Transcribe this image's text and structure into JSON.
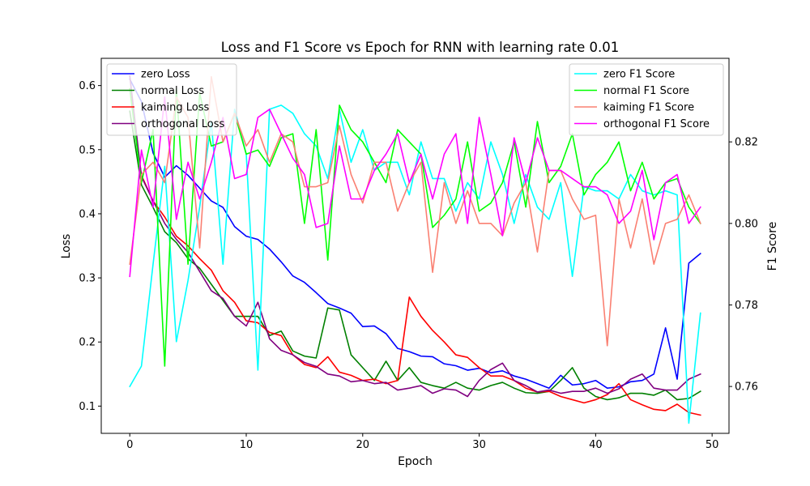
{
  "chart_data": {
    "type": "line",
    "title": "Loss and F1 Score vs Epoch for RNN with learning rate 0.01",
    "xlabel": "Epoch",
    "ylabel": "Loss",
    "ylabel_right": "F1 Score",
    "xlim": [
      -2.45,
      51.45
    ],
    "ylim": [
      0.0575,
      0.6425
    ],
    "ylim_right": [
      0.7485,
      0.8405
    ],
    "x_ticks": [
      "0",
      "10",
      "20",
      "30",
      "40",
      "50"
    ],
    "y_ticks": [
      "0.1",
      "0.2",
      "0.3",
      "0.4",
      "0.5",
      "0.6"
    ],
    "y_ticks_right": [
      "0.76",
      "0.78",
      "0.80",
      "0.82"
    ],
    "grid": false,
    "legend_left_position": "upper-left",
    "legend_right_position": "upper-right",
    "x": [
      0,
      1,
      2,
      3,
      4,
      5,
      6,
      7,
      8,
      9,
      10,
      11,
      12,
      13,
      14,
      15,
      16,
      17,
      18,
      19,
      20,
      21,
      22,
      23,
      24,
      25,
      26,
      27,
      28,
      29,
      30,
      31,
      32,
      33,
      34,
      35,
      36,
      37,
      38,
      39,
      40,
      41,
      42,
      43,
      44,
      45,
      46,
      47,
      48,
      49
    ],
    "loss_series": [
      {
        "name": "zero Loss",
        "color": "#0000ff",
        "values": [
          0.61,
          0.575,
          0.495,
          0.457,
          0.475,
          0.46,
          0.44,
          0.42,
          0.41,
          0.38,
          0.365,
          0.36,
          0.345,
          0.325,
          0.303,
          0.293,
          0.277,
          0.26,
          0.253,
          0.245,
          0.224,
          0.225,
          0.213,
          0.19,
          0.185,
          0.178,
          0.177,
          0.166,
          0.163,
          0.156,
          0.159,
          0.152,
          0.155,
          0.147,
          0.142,
          0.135,
          0.128,
          0.148,
          0.133,
          0.135,
          0.14,
          0.128,
          0.13,
          0.138,
          0.14,
          0.15,
          0.222,
          0.142,
          0.323,
          0.338
        ]
      },
      {
        "name": "normal Loss",
        "color": "#008000",
        "values": [
          0.56,
          0.445,
          0.41,
          0.372,
          0.355,
          0.33,
          0.315,
          0.29,
          0.265,
          0.24,
          0.24,
          0.24,
          0.21,
          0.217,
          0.186,
          0.178,
          0.175,
          0.253,
          0.25,
          0.18,
          0.16,
          0.14,
          0.17,
          0.14,
          0.16,
          0.137,
          0.132,
          0.128,
          0.137,
          0.128,
          0.125,
          0.132,
          0.137,
          0.128,
          0.121,
          0.12,
          0.123,
          0.14,
          0.16,
          0.128,
          0.115,
          0.11,
          0.113,
          0.12,
          0.12,
          0.117,
          0.125,
          0.11,
          0.112,
          0.123
        ]
      },
      {
        "name": "kaiming Loss",
        "color": "#ff0000",
        "values": [
          0.595,
          0.46,
          0.42,
          0.395,
          0.365,
          0.35,
          0.33,
          0.312,
          0.28,
          0.262,
          0.233,
          0.23,
          0.215,
          0.21,
          0.18,
          0.165,
          0.16,
          0.177,
          0.153,
          0.148,
          0.14,
          0.142,
          0.135,
          0.14,
          0.27,
          0.24,
          0.218,
          0.2,
          0.18,
          0.176,
          0.16,
          0.147,
          0.147,
          0.14,
          0.128,
          0.122,
          0.123,
          0.115,
          0.11,
          0.105,
          0.11,
          0.118,
          0.135,
          0.11,
          0.102,
          0.095,
          0.093,
          0.103,
          0.09,
          0.086
        ]
      },
      {
        "name": "orthogonal Loss",
        "color": "#800080",
        "values": [
          0.615,
          0.458,
          0.42,
          0.385,
          0.36,
          0.34,
          0.31,
          0.28,
          0.268,
          0.24,
          0.225,
          0.262,
          0.205,
          0.187,
          0.18,
          0.168,
          0.162,
          0.15,
          0.147,
          0.138,
          0.14,
          0.135,
          0.137,
          0.125,
          0.128,
          0.132,
          0.12,
          0.127,
          0.125,
          0.115,
          0.14,
          0.157,
          0.167,
          0.14,
          0.132,
          0.122,
          0.125,
          0.12,
          0.123,
          0.123,
          0.128,
          0.12,
          0.127,
          0.142,
          0.15,
          0.128,
          0.125,
          0.125,
          0.142,
          0.15
        ]
      }
    ],
    "f1_series": [
      {
        "name": "zero F1 Score",
        "color": "#00ffff",
        "values": [
          0.76,
          0.765,
          0.79,
          0.814,
          0.771,
          0.786,
          0.804,
          0.825,
          0.79,
          0.828,
          0.817,
          0.764,
          0.828,
          0.829,
          0.827,
          0.822,
          0.819,
          0.811,
          0.828,
          0.815,
          0.823,
          0.813,
          0.815,
          0.815,
          0.807,
          0.82,
          0.811,
          0.811,
          0.803,
          0.81,
          0.806,
          0.82,
          0.812,
          0.8,
          0.812,
          0.804,
          0.801,
          0.81,
          0.787,
          0.809,
          0.808,
          0.808,
          0.806,
          0.812,
          0.808,
          0.807,
          0.808,
          0.807,
          0.751,
          0.778
        ]
      },
      {
        "name": "normal F1 Score",
        "color": "#00ff00",
        "values": [
          0.833,
          0.81,
          0.823,
          0.765,
          0.833,
          0.79,
          0.832,
          0.819,
          0.82,
          0.827,
          0.817,
          0.818,
          0.814,
          0.821,
          0.822,
          0.8,
          0.823,
          0.791,
          0.829,
          0.823,
          0.82,
          0.815,
          0.81,
          0.823,
          0.82,
          0.817,
          0.799,
          0.802,
          0.806,
          0.82,
          0.803,
          0.805,
          0.81,
          0.82,
          0.804,
          0.825,
          0.81,
          0.814,
          0.822,
          0.807,
          0.812,
          0.815,
          0.82,
          0.808,
          0.815,
          0.806,
          0.81,
          0.811,
          0.804,
          0.8
        ]
      },
      {
        "name": "kaiming F1 Score",
        "color": "#fa8072",
        "values": [
          0.79,
          0.812,
          0.815,
          0.81,
          0.831,
          0.826,
          0.794,
          0.836,
          0.82,
          0.827,
          0.819,
          0.823,
          0.815,
          0.822,
          0.82,
          0.809,
          0.809,
          0.81,
          0.824,
          0.812,
          0.805,
          0.815,
          0.815,
          0.803,
          0.81,
          0.815,
          0.788,
          0.81,
          0.8,
          0.808,
          0.8,
          0.8,
          0.797,
          0.805,
          0.81,
          0.793,
          0.813,
          0.813,
          0.806,
          0.801,
          0.802,
          0.77,
          0.806,
          0.794,
          0.806,
          0.79,
          0.8,
          0.801,
          0.807,
          0.8
        ]
      },
      {
        "name": "orthogonal F1 Score",
        "color": "#ff00ff",
        "values": [
          0.787,
          0.818,
          0.804,
          0.831,
          0.801,
          0.815,
          0.806,
          0.815,
          0.826,
          0.811,
          0.812,
          0.826,
          0.828,
          0.822,
          0.816,
          0.812,
          0.799,
          0.8,
          0.819,
          0.806,
          0.806,
          0.813,
          0.817,
          0.822,
          0.81,
          0.817,
          0.806,
          0.817,
          0.822,
          0.8,
          0.826,
          0.812,
          0.797,
          0.821,
          0.81,
          0.821,
          0.813,
          0.813,
          0.811,
          0.809,
          0.809,
          0.807,
          0.8,
          0.803,
          0.813,
          0.796,
          0.81,
          0.812,
          0.8,
          0.804
        ]
      }
    ]
  }
}
